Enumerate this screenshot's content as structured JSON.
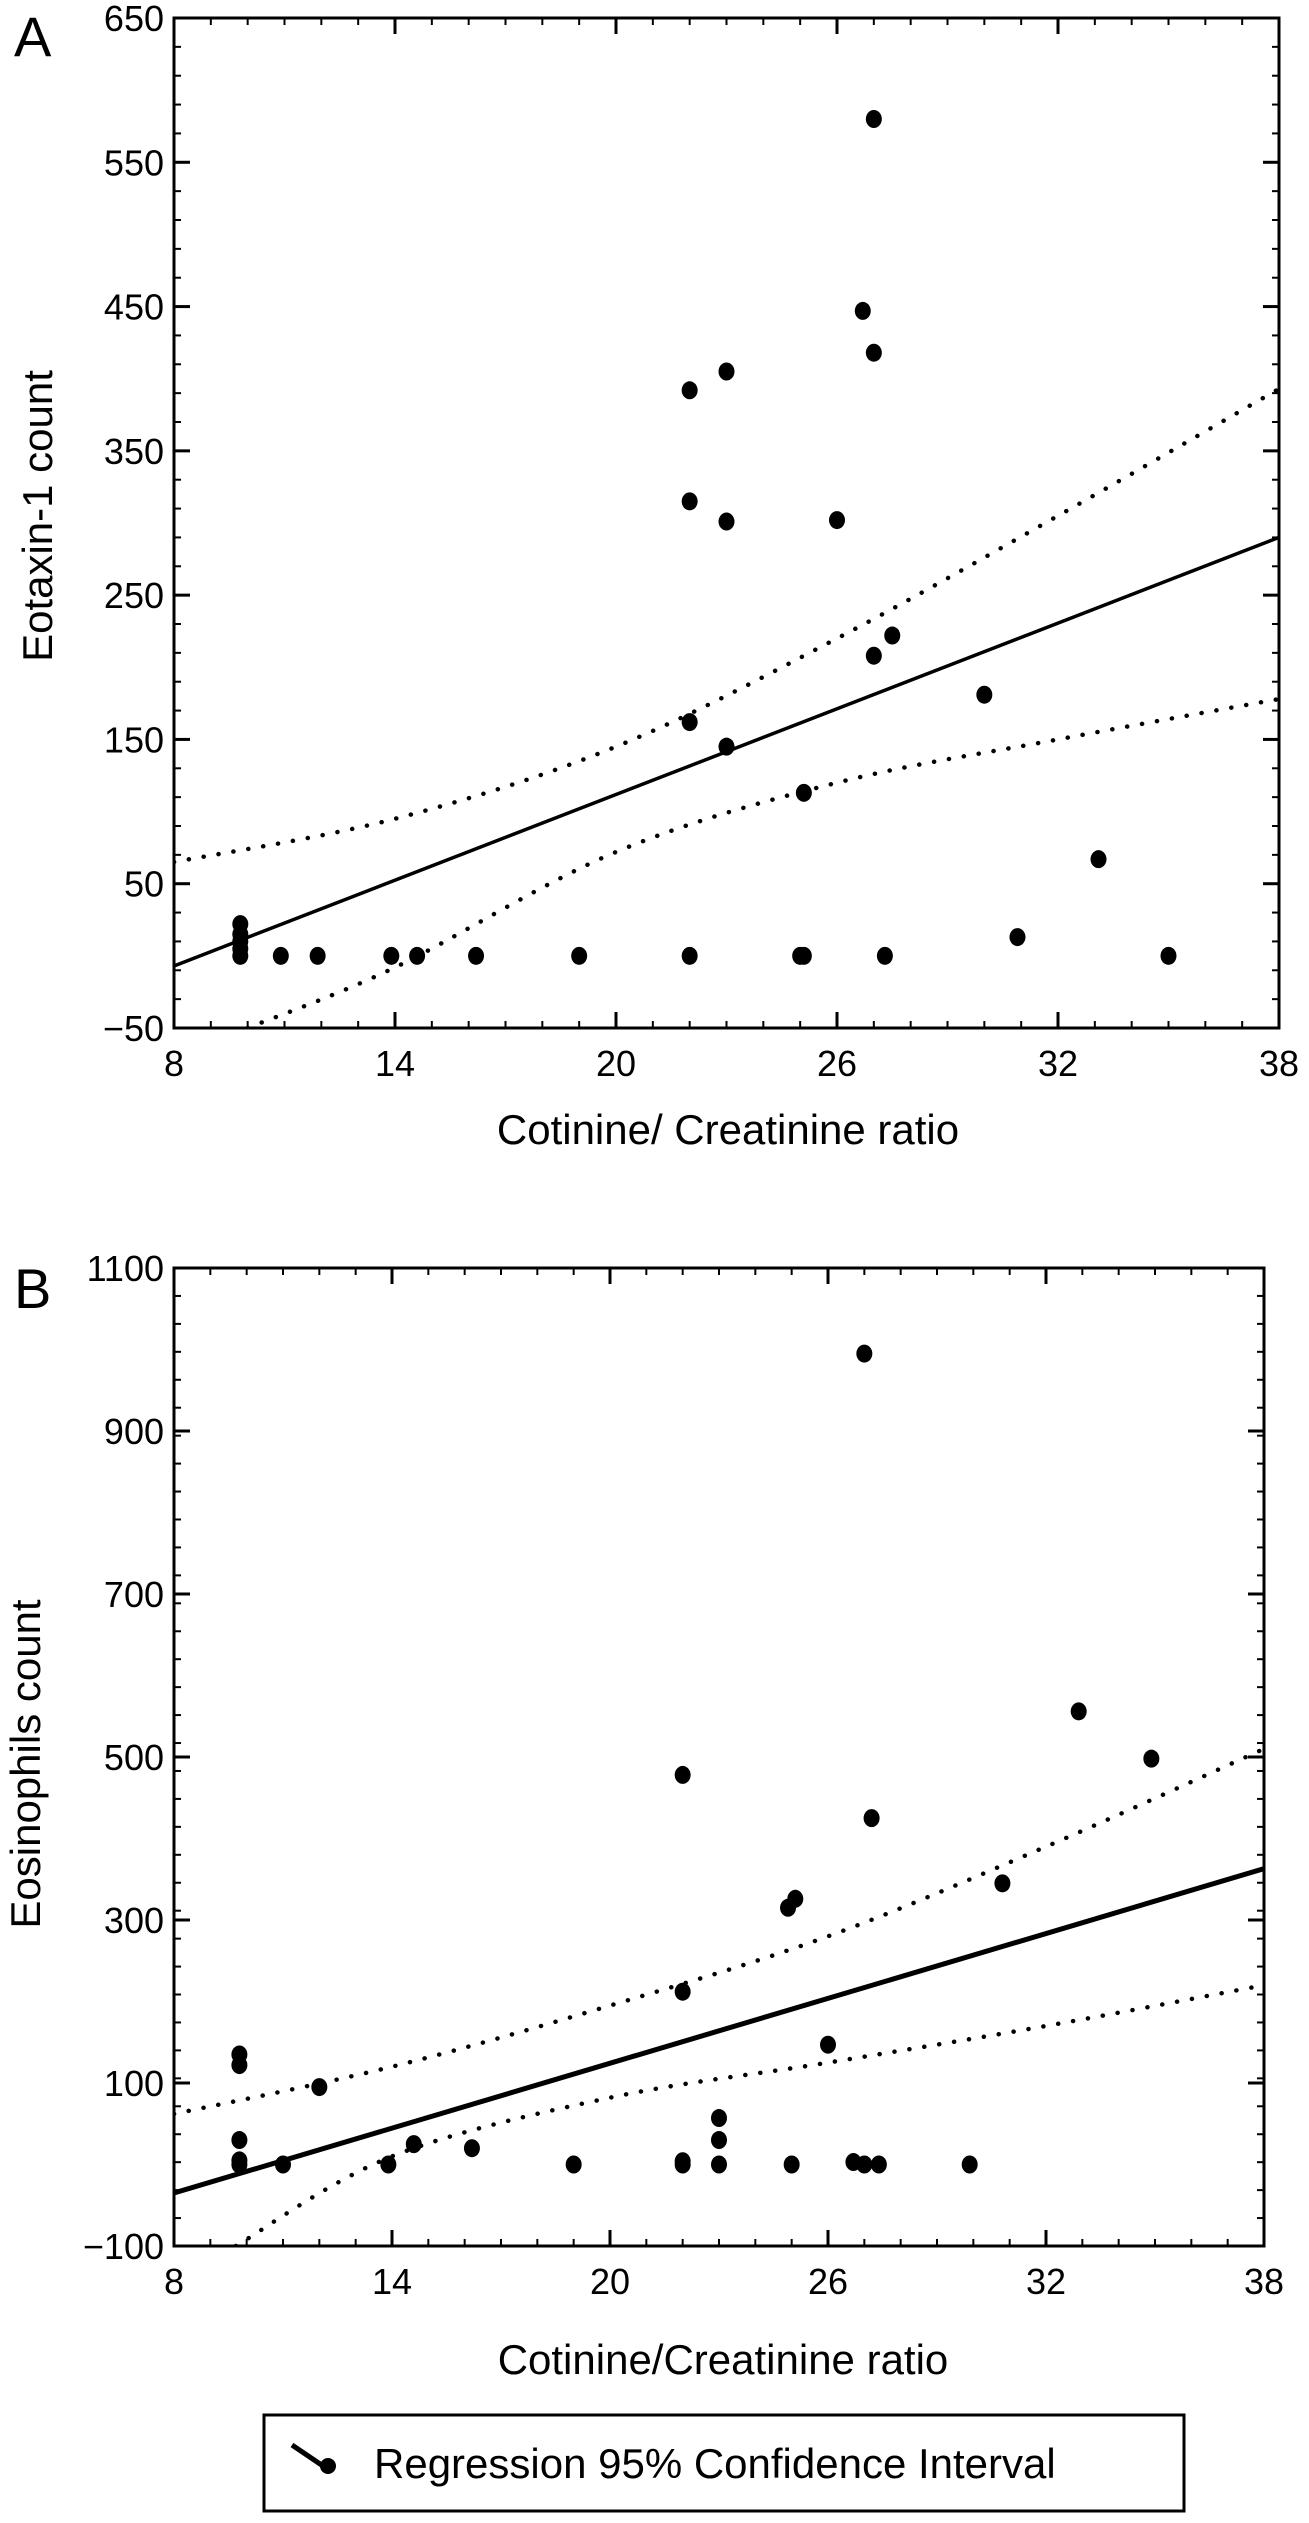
{
  "legend": {
    "text": "Regression 95% Confidence Interval"
  },
  "chart_data": [
    {
      "type": "scatter",
      "panel": "A",
      "xlabel": "Cotinine/ Creatinine ratio",
      "ylabel": "Eotaxin-1 count",
      "xlim": [
        8,
        38
      ],
      "ylim": [
        -50,
        650
      ],
      "xticks": [
        8,
        14,
        20,
        26,
        32,
        38
      ],
      "xtick_labels": [
        "8",
        "14",
        "20",
        "26",
        "32",
        "38"
      ],
      "yticks": [
        -50,
        50,
        150,
        250,
        350,
        450,
        550,
        650
      ],
      "ytick_labels": [
        "−50",
        "50",
        "150",
        "250",
        "350",
        "450",
        "550",
        "650"
      ],
      "grid": false,
      "points": [
        {
          "x": 9.8,
          "y": 0
        },
        {
          "x": 9.8,
          "y": 5
        },
        {
          "x": 9.8,
          "y": 10
        },
        {
          "x": 9.8,
          "y": 15
        },
        {
          "x": 9.8,
          "y": 22
        },
        {
          "x": 10.9,
          "y": 0
        },
        {
          "x": 11.9,
          "y": 0
        },
        {
          "x": 13.9,
          "y": 0
        },
        {
          "x": 14.6,
          "y": 0
        },
        {
          "x": 16.2,
          "y": 0
        },
        {
          "x": 19,
          "y": 0
        },
        {
          "x": 22,
          "y": 0
        },
        {
          "x": 25,
          "y": 0
        },
        {
          "x": 25.1,
          "y": 0
        },
        {
          "x": 27.3,
          "y": 0
        },
        {
          "x": 30.9,
          "y": 13
        },
        {
          "x": 35,
          "y": 0
        },
        {
          "x": 33.1,
          "y": 67
        },
        {
          "x": 25.1,
          "y": 113
        },
        {
          "x": 22,
          "y": 162
        },
        {
          "x": 23,
          "y": 145
        },
        {
          "x": 30,
          "y": 181
        },
        {
          "x": 27,
          "y": 208
        },
        {
          "x": 27.5,
          "y": 222
        },
        {
          "x": 22,
          "y": 315
        },
        {
          "x": 23,
          "y": 301
        },
        {
          "x": 26,
          "y": 302
        },
        {
          "x": 22,
          "y": 392
        },
        {
          "x": 23,
          "y": 405
        },
        {
          "x": 26.7,
          "y": 447
        },
        {
          "x": 27,
          "y": 418
        },
        {
          "x": 27,
          "y": 580
        }
      ],
      "regression": {
        "x": [
          8,
          38
        ],
        "y": [
          -7,
          290
        ]
      },
      "ci_upper": {
        "x": [
          8,
          14,
          20,
          26,
          32,
          38
        ],
        "y": [
          65,
          95,
          145,
          220,
          305,
          393
        ]
      },
      "ci_lower": {
        "x": [
          10,
          14,
          20,
          26,
          32,
          38
        ],
        "y": [
          -50,
          -8,
          72,
          120,
          150,
          178
        ]
      }
    },
    {
      "type": "scatter",
      "panel": "B",
      "xlabel": "Cotinine/Creatinine ratio",
      "ylabel": "Eosinophils count",
      "xlim": [
        8,
        38
      ],
      "ylim": [
        -100,
        1100
      ],
      "xticks": [
        8,
        14,
        20,
        26,
        32,
        38
      ],
      "xtick_labels": [
        "8",
        "14",
        "20",
        "26",
        "32",
        "38"
      ],
      "yticks": [
        -100,
        100,
        300,
        500,
        700,
        900,
        1100
      ],
      "ytick_labels": [
        "−100",
        "100",
        "300",
        "500",
        "700",
        "900",
        "1100"
      ],
      "grid": false,
      "points": [
        {
          "x": 9.8,
          "y": 0
        },
        {
          "x": 9.8,
          "y": 5
        },
        {
          "x": 9.8,
          "y": 30
        },
        {
          "x": 9.8,
          "y": 122
        },
        {
          "x": 9.8,
          "y": 135
        },
        {
          "x": 11,
          "y": 0
        },
        {
          "x": 12,
          "y": 95
        },
        {
          "x": 13.9,
          "y": 0
        },
        {
          "x": 14.6,
          "y": 25
        },
        {
          "x": 16.2,
          "y": 20
        },
        {
          "x": 19,
          "y": 0
        },
        {
          "x": 22,
          "y": 0
        },
        {
          "x": 22,
          "y": 4
        },
        {
          "x": 22,
          "y": 212
        },
        {
          "x": 22,
          "y": 478
        },
        {
          "x": 23,
          "y": 0
        },
        {
          "x": 23,
          "y": 30
        },
        {
          "x": 23,
          "y": 57
        },
        {
          "x": 25,
          "y": 0
        },
        {
          "x": 24.9,
          "y": 315
        },
        {
          "x": 25.1,
          "y": 326
        },
        {
          "x": 26,
          "y": 147
        },
        {
          "x": 26.7,
          "y": 3
        },
        {
          "x": 27,
          "y": 0
        },
        {
          "x": 27.4,
          "y": 0
        },
        {
          "x": 27.2,
          "y": 425
        },
        {
          "x": 27,
          "y": 995
        },
        {
          "x": 29.9,
          "y": 0
        },
        {
          "x": 30.8,
          "y": 345
        },
        {
          "x": 32.9,
          "y": 556
        },
        {
          "x": 34.9,
          "y": 498
        }
      ],
      "regression": {
        "x": [
          8,
          38
        ],
        "y": [
          -35,
          363
        ]
      },
      "ci_upper": {
        "x": [
          8,
          14,
          20,
          26,
          32,
          38
        ],
        "y": [
          62,
          120,
          195,
          280,
          390,
          510
        ]
      },
      "ci_lower": {
        "x": [
          9.7,
          14,
          20,
          26,
          32,
          38
        ],
        "y": [
          -100,
          10,
          82,
          125,
          170,
          220
        ]
      }
    }
  ]
}
